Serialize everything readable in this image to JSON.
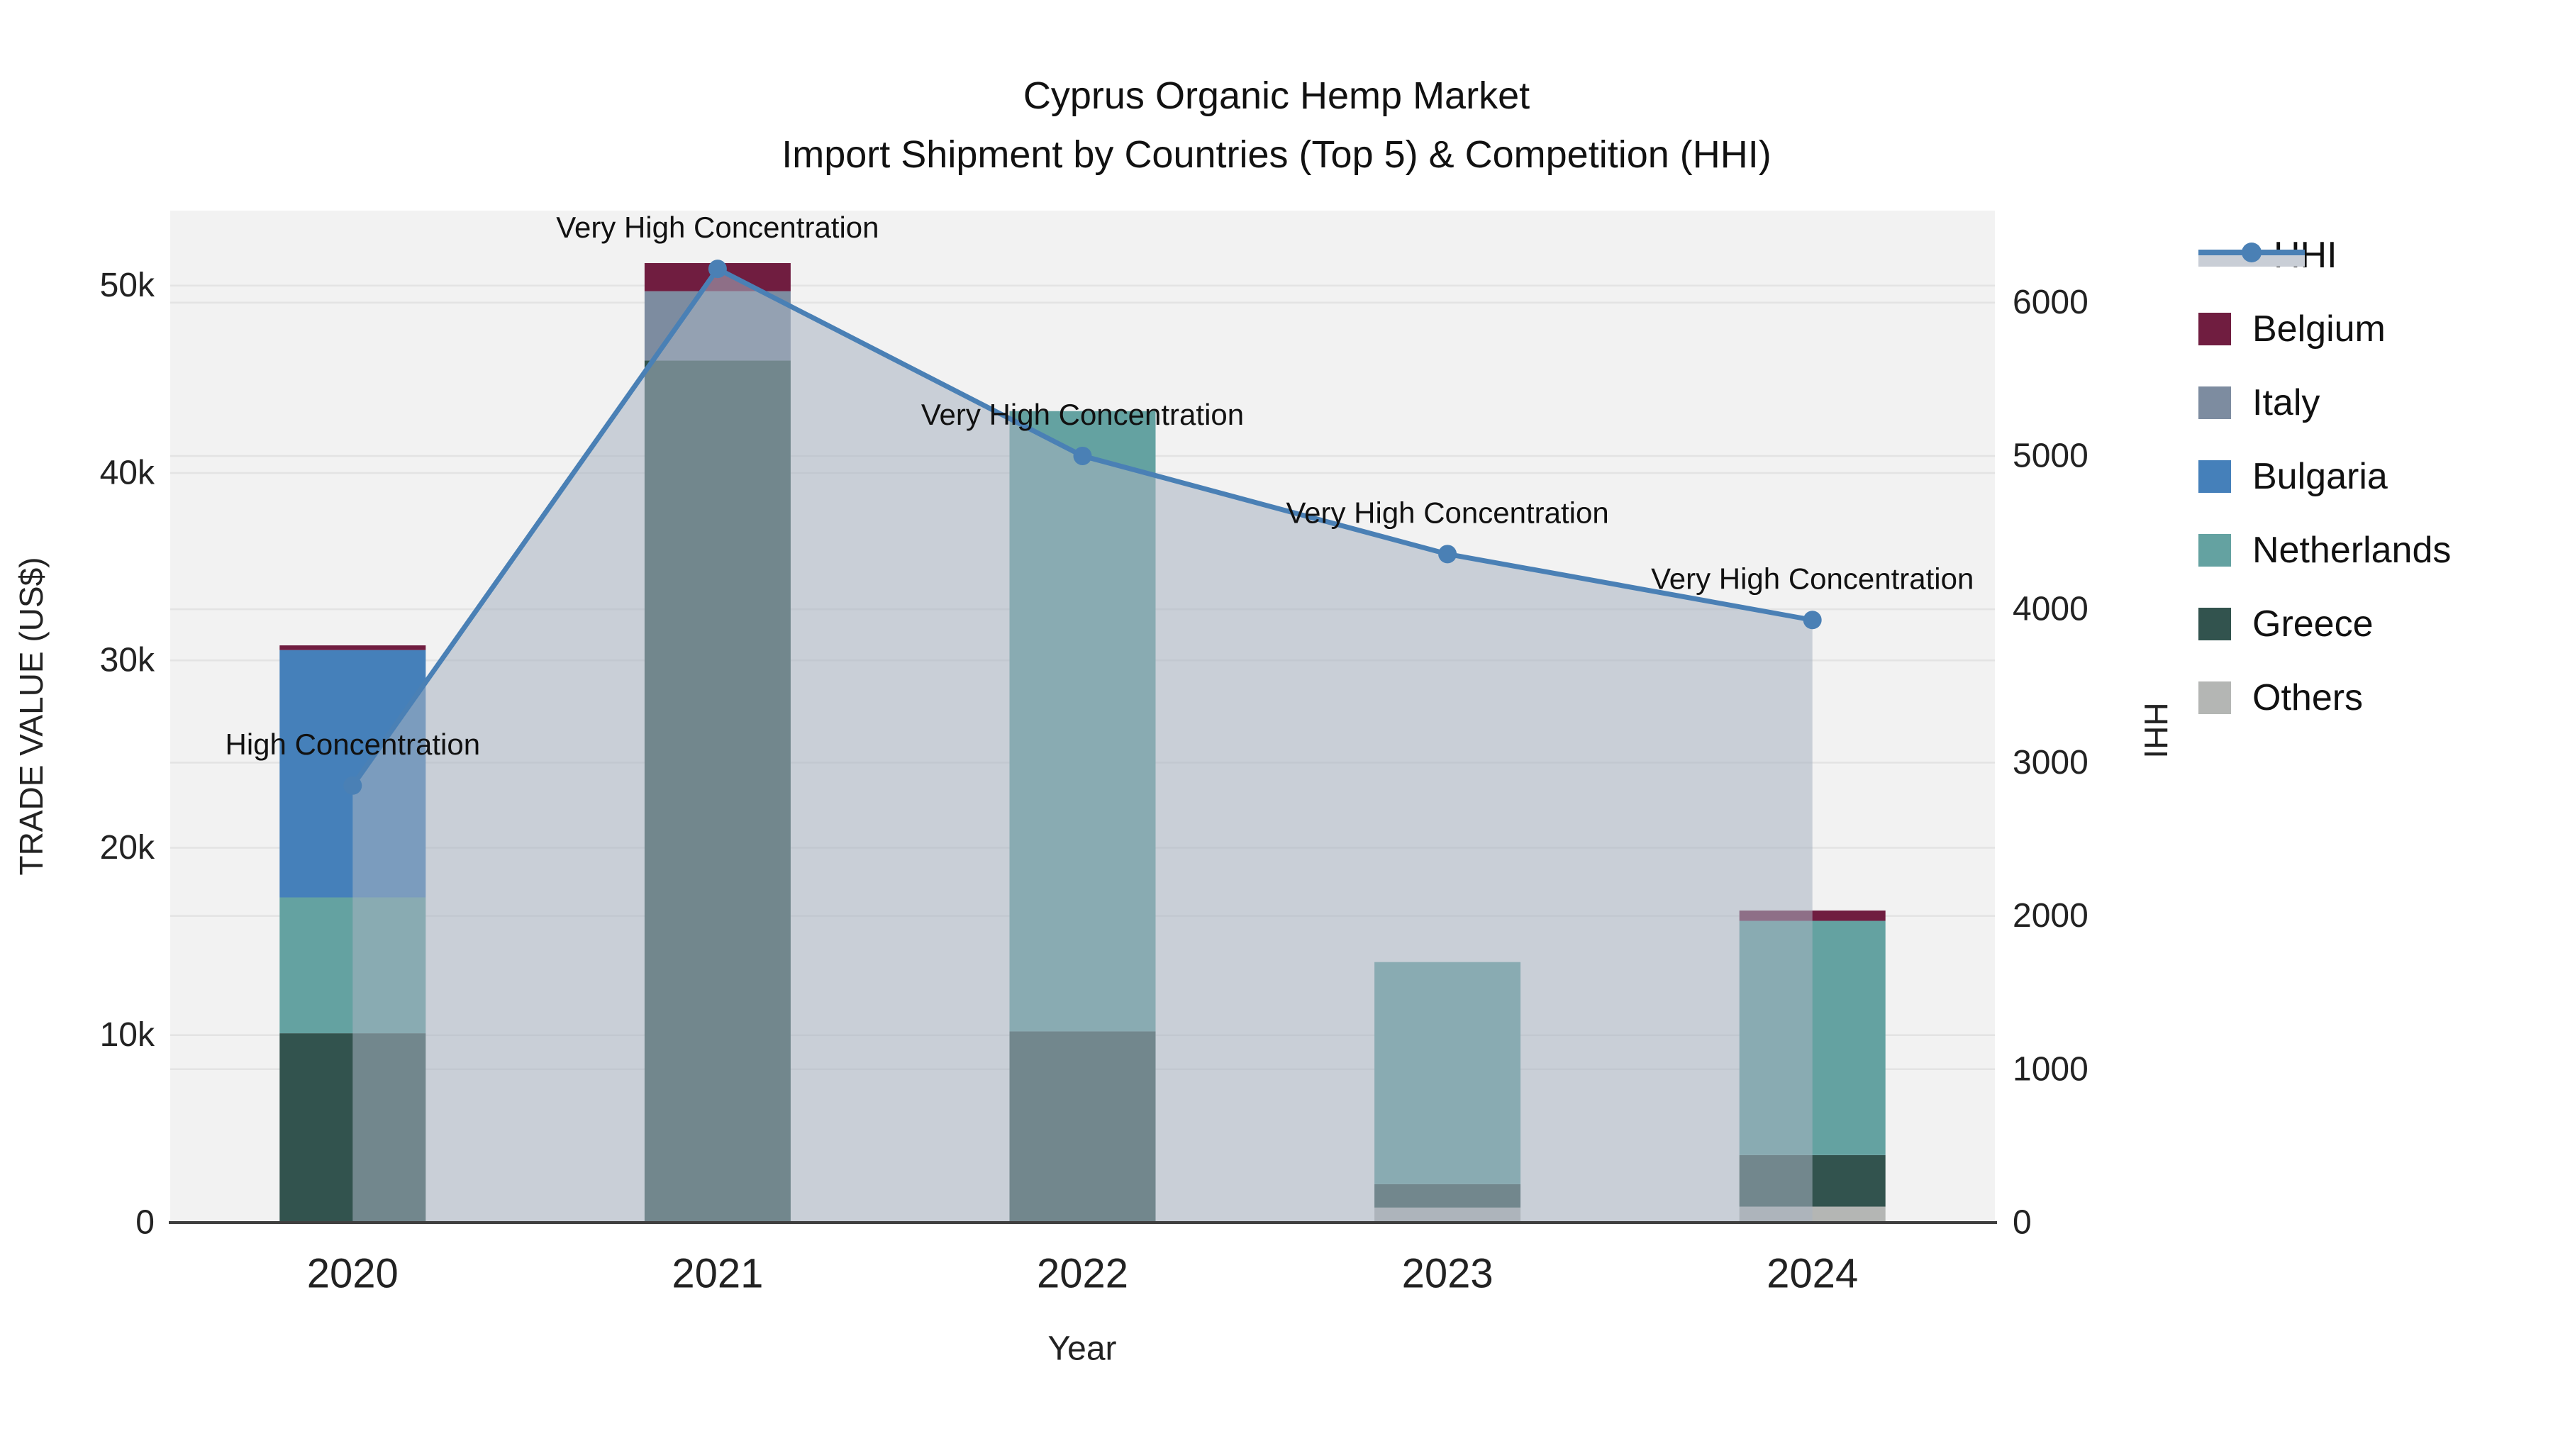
{
  "title": {
    "line1": "Cyprus Organic Hemp Market",
    "line2": "Import Shipment by Countries (Top 5) & Competition (HHI)"
  },
  "chart_data": {
    "type": "bar+line",
    "categories": [
      "2020",
      "2021",
      "2022",
      "2023",
      "2024"
    ],
    "stack_order": [
      "Others",
      "Greece",
      "Netherlands",
      "Bulgaria",
      "Italy",
      "Belgium"
    ],
    "series": [
      {
        "name": "Belgium",
        "color": "#701d40",
        "values": [
          250,
          1500,
          0,
          0,
          550
        ]
      },
      {
        "name": "Italy",
        "color": "#7d8ca0",
        "values": [
          0,
          3700,
          0,
          0,
          0
        ]
      },
      {
        "name": "Bulgaria",
        "color": "#4580ba",
        "values": [
          13200,
          0,
          0,
          0,
          0
        ]
      },
      {
        "name": "Netherlands",
        "color": "#64a2a1",
        "values": [
          7250,
          0,
          33100,
          11850,
          12500
        ]
      },
      {
        "name": "Greece",
        "color": "#32534e",
        "values": [
          10100,
          46000,
          10200,
          1250,
          2750
        ]
      },
      {
        "name": "Others",
        "color": "#b4b6b4",
        "values": [
          0,
          0,
          0,
          800,
          850
        ]
      }
    ],
    "hhi": {
      "name": "HHI",
      "color": "#4a80b5",
      "area_fill": "rgba(168,178,193,0.55)",
      "values": [
        2850,
        6220,
        5000,
        4360,
        3930
      ]
    },
    "annotations": [
      {
        "year": "2020",
        "text": "High Concentration"
      },
      {
        "year": "2021",
        "text": "Very High Concentration"
      },
      {
        "year": "2022",
        "text": "Very High Concentration"
      },
      {
        "year": "2023",
        "text": "Very High Concentration"
      },
      {
        "year": "2024",
        "text": "Very High Concentration"
      }
    ],
    "y_left": {
      "label": "TRADE VALUE (US$)",
      "ticks": [
        "0",
        "10k",
        "20k",
        "30k",
        "40k",
        "50k"
      ],
      "tick_values": [
        0,
        10000,
        20000,
        30000,
        40000,
        50000
      ],
      "max": 54000
    },
    "y_right": {
      "label": "HHI",
      "ticks": [
        "0",
        "1000",
        "2000",
        "3000",
        "4000",
        "5000",
        "6000"
      ],
      "tick_values": [
        0,
        1000,
        2000,
        3000,
        4000,
        5000,
        6000
      ],
      "max": 6600
    },
    "x": {
      "label": "Year"
    },
    "grid": true,
    "legend_position": "right"
  },
  "legend": {
    "items": [
      {
        "label": "HHI",
        "type": "line",
        "color": "#4a80b5"
      },
      {
        "label": "Belgium",
        "type": "swatch",
        "color": "#701d40"
      },
      {
        "label": "Italy",
        "type": "swatch",
        "color": "#7d8ca0"
      },
      {
        "label": "Bulgaria",
        "type": "swatch",
        "color": "#4580ba"
      },
      {
        "label": "Netherlands",
        "type": "swatch",
        "color": "#64a2a1"
      },
      {
        "label": "Greece",
        "type": "swatch",
        "color": "#32534e"
      },
      {
        "label": "Others",
        "type": "swatch",
        "color": "#b4b6b4"
      }
    ]
  },
  "colors": {
    "plot_bg": "#f2f2f2",
    "gridline": "#e3e3e3",
    "axis_line": "#3f3f3f",
    "tick_text": "#222222"
  }
}
